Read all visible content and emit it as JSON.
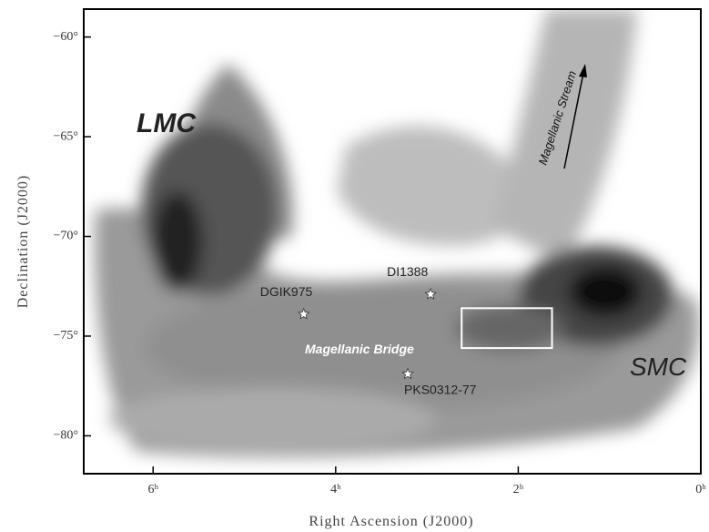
{
  "chart_data": {
    "type": "skymap",
    "x_label": "Right Ascension (J2000)",
    "y_label": "Declination (J2000)",
    "xlim": [
      6.76,
      0
    ],
    "ylim": [
      -81.9,
      -58.6
    ],
    "xticks": [
      {
        "value": 6,
        "label": "6ʰ"
      },
      {
        "value": 4,
        "label": "4ʰ"
      },
      {
        "value": 2,
        "label": "2ʰ"
      },
      {
        "value": 0,
        "label": "0ʰ"
      }
    ],
    "yticks": [
      {
        "value": -60,
        "label": "−60°"
      },
      {
        "value": -65,
        "label": "−65°"
      },
      {
        "value": -70,
        "label": "−70°"
      },
      {
        "value": -75,
        "label": "−75°"
      },
      {
        "value": -80,
        "label": "−80°"
      }
    ],
    "annotations": {
      "lmc": "LMC",
      "smc": "SMC",
      "bridge": "Magellanic Bridge",
      "stream": "Magellanic Stream"
    },
    "sources": [
      {
        "name": "DGIK975",
        "x": 4.35,
        "y": -73.9
      },
      {
        "name": "DI1388",
        "x": 2.96,
        "y": -72.9
      },
      {
        "name": "PKS0312-77",
        "x": 3.21,
        "y": -76.9
      }
    ],
    "region": {
      "x": [
        2.62,
        1.63
      ],
      "y": [
        -73.6,
        -75.6
      ]
    }
  }
}
